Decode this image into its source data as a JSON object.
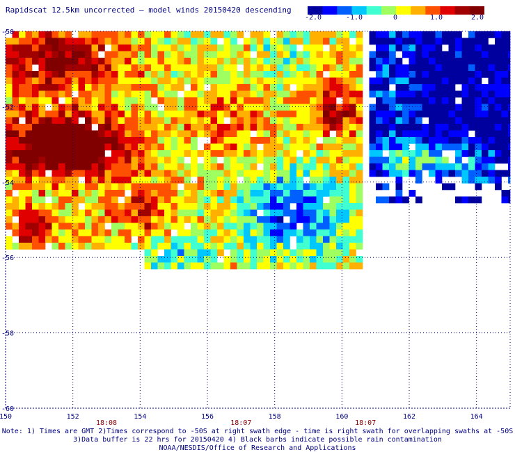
{
  "title": "Rapidscat 12.5km uncorrected — model winds 20150420 descending",
  "colorbar": {
    "ticks": [
      "-2.0",
      "-1.0",
      "0",
      "1.0",
      "2.0"
    ],
    "colors": [
      "#00009f",
      "#0000ff",
      "#0060ff",
      "#00c8ff",
      "#40ffd0",
      "#a0ff60",
      "#ffff00",
      "#ffb000",
      "#ff5000",
      "#e00000",
      "#a00000",
      "#800000"
    ]
  },
  "axes": {
    "lon_ticks": [
      "150",
      "152",
      "154",
      "156",
      "158",
      "160",
      "162",
      "164"
    ],
    "lat_ticks": [
      "-50",
      "-52",
      "-54",
      "-56",
      "-58",
      "-60"
    ],
    "time_labels": [
      "18:08",
      "18:07",
      "18:07"
    ],
    "time_label_lons": [
      153,
      157,
      160.7
    ]
  },
  "notes": [
    "Note: 1) Times are GMT 2)Times correspond to -50S at right swath edge - time is right swath for overlapping swaths at -50S",
    "3)Data buffer is 22 hrs for 20150420 4) Black barbs indicate possible rain contamination",
    "NOAA/NESDIS/Office of Research and Applications"
  ]
}
